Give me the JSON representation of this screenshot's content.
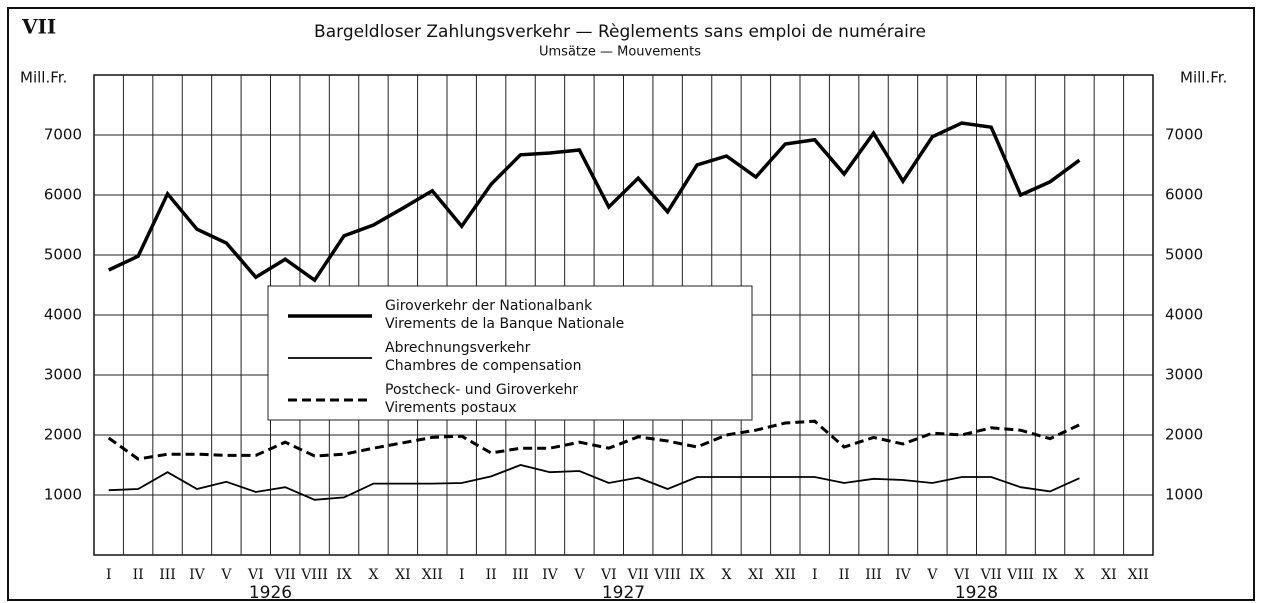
{
  "chart_data": {
    "type": "line",
    "panel": "VII",
    "title": "Bargeldloser Zahlungsverkehr — Règlements sans emploi de numéraire",
    "subtitle": "Umsätze — Mouvements",
    "y_label": "Mill.Fr.",
    "categories": [
      "I",
      "II",
      "III",
      "IV",
      "V",
      "VI",
      "VII",
      "VIII",
      "IX",
      "X",
      "XI",
      "XII",
      "I",
      "II",
      "III",
      "IV",
      "V",
      "VI",
      "VII",
      "VIII",
      "IX",
      "X",
      "XI",
      "XII",
      "I",
      "II",
      "III",
      "IV",
      "V",
      "VI",
      "VII",
      "VIII",
      "IX",
      "X",
      "XI",
      "XII"
    ],
    "years": [
      "1926",
      "1927",
      "1928"
    ],
    "ylim": [
      0,
      8000
    ],
    "yticks": [
      1000,
      2000,
      3000,
      4000,
      5000,
      6000,
      7000
    ],
    "grid": true,
    "series": [
      {
        "name": "Giroverkehr der Nationalbank",
        "name_fr": "Virements de la Banque Nationale",
        "color": "#000000",
        "style": "thick",
        "values": [
          4750,
          4980,
          6020,
          5430,
          5200,
          4630,
          4930,
          4580,
          5320,
          5500,
          5780,
          6070,
          5480,
          6180,
          6670,
          6700,
          6750,
          5800,
          6280,
          5720,
          6500,
          6650,
          6300,
          6850,
          6920,
          6350,
          7030,
          6230,
          6970,
          7200,
          7130,
          6000,
          6220,
          6580,
          null,
          null
        ]
      },
      {
        "name": "Abrechnungsverkehr",
        "name_fr": "Chambres de compensation",
        "color": "#000000",
        "style": "thin",
        "values": [
          1080,
          1100,
          1380,
          1100,
          1220,
          1050,
          1130,
          920,
          960,
          1190,
          1190,
          1190,
          1200,
          1310,
          1500,
          1380,
          1400,
          1200,
          1290,
          1100,
          1300,
          1300,
          1300,
          1300,
          1300,
          1200,
          1270,
          1250,
          1200,
          1300,
          1300,
          1130,
          1060,
          1280,
          null,
          null
        ]
      },
      {
        "name": "Postcheck- und Giroverkehr",
        "name_fr": "Virements postaux",
        "color": "#000000",
        "style": "dashed",
        "values": [
          1950,
          1600,
          1680,
          1680,
          1660,
          1660,
          1880,
          1650,
          1680,
          1780,
          1870,
          1960,
          1980,
          1700,
          1780,
          1780,
          1880,
          1780,
          1970,
          1900,
          1800,
          2000,
          2080,
          2200,
          2230,
          1800,
          1960,
          1850,
          2030,
          2000,
          2120,
          2080,
          1940,
          2170,
          null,
          null
        ]
      }
    ]
  }
}
